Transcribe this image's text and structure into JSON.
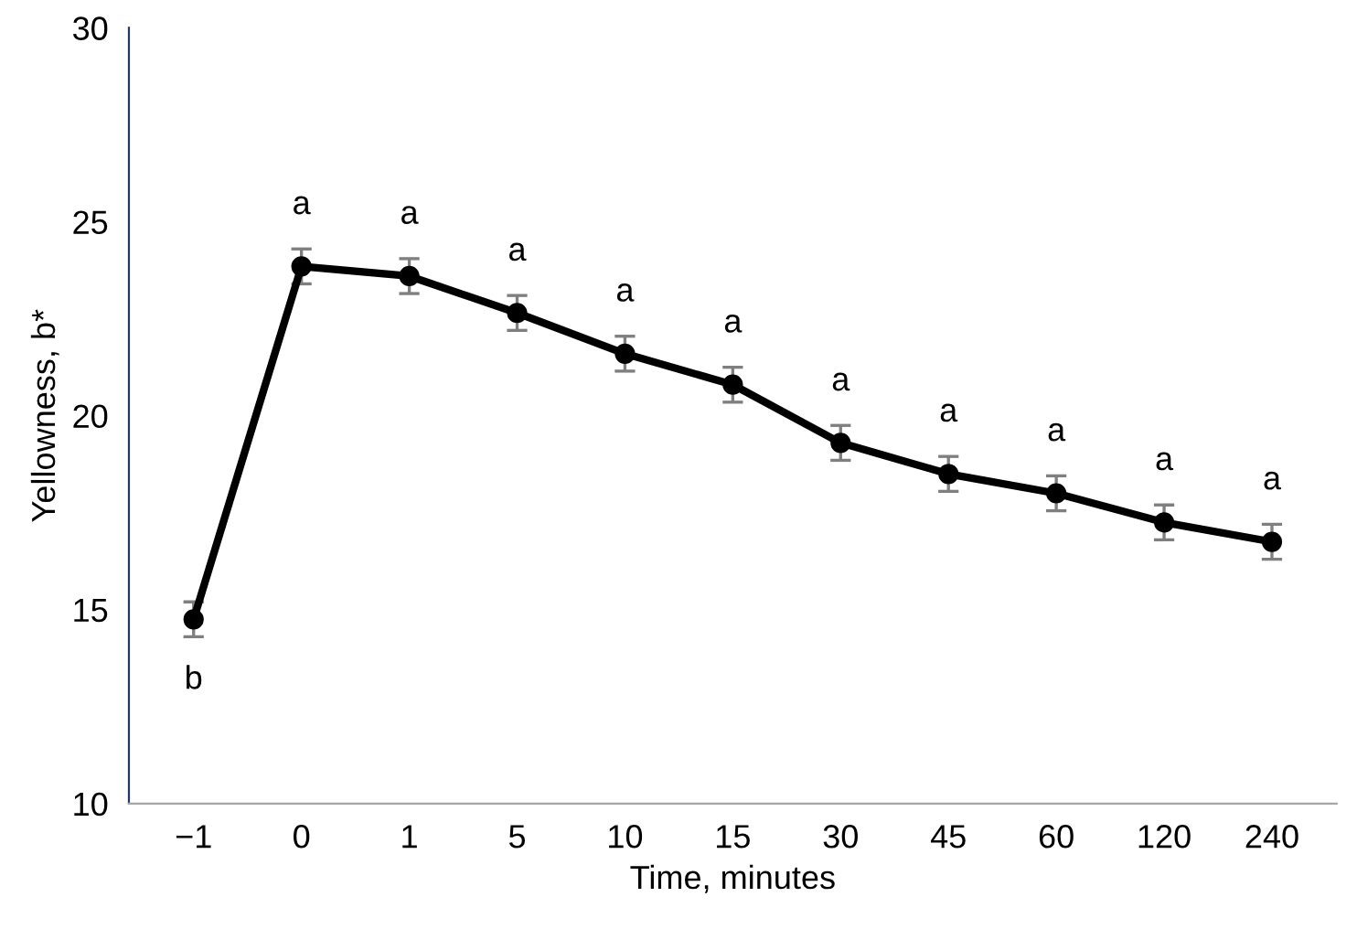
{
  "chart_data": {
    "type": "line",
    "xlabel": "Time, minutes",
    "ylabel": "Yellowness, b*",
    "categories": [
      "−1",
      "0",
      "1",
      "5",
      "10",
      "15",
      "30",
      "45",
      "60",
      "120",
      "240"
    ],
    "series": [
      {
        "color": "#000000",
        "values": [
          14.75,
          23.85,
          23.6,
          22.65,
          21.6,
          20.8,
          19.3,
          18.5,
          18.0,
          17.25,
          16.75
        ],
        "errors": [
          0.45,
          0.45,
          0.45,
          0.45,
          0.45,
          0.45,
          0.45,
          0.45,
          0.45,
          0.45,
          0.45
        ],
        "value_labels": [
          "b",
          "a",
          "a",
          "a",
          "a",
          "a",
          "a",
          "a",
          "a",
          "a",
          "a"
        ]
      }
    ],
    "ylim": [
      10,
      30
    ],
    "yticks": [
      10,
      15,
      20,
      25,
      30
    ],
    "grid": false,
    "legend": false,
    "marker": "circle",
    "line_style": "solid"
  }
}
